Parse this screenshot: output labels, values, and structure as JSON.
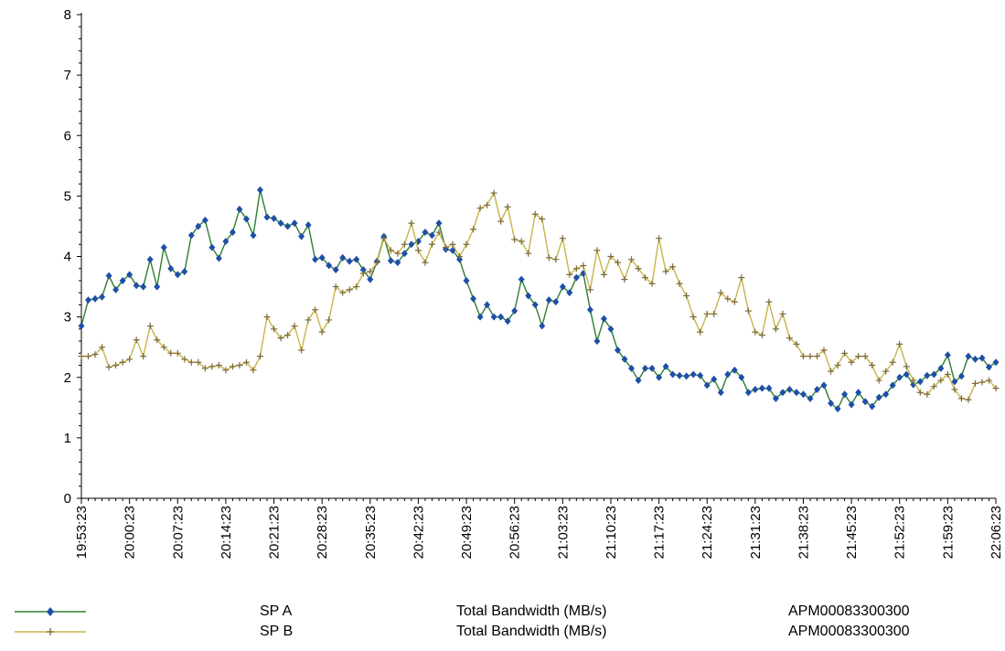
{
  "chart_data": {
    "type": "line",
    "title": "",
    "xlabel": "",
    "ylabel": "",
    "ylim": [
      0,
      8
    ],
    "yticks": [
      0,
      1,
      2,
      3,
      4,
      5,
      6,
      7,
      8
    ],
    "ytick_labels": [
      "0",
      "1",
      "2",
      "3",
      "4",
      "5",
      "6",
      "7",
      "8"
    ],
    "xlim_minutes_since_1953": [
      0,
      133
    ],
    "xtick_labels": [
      "19:53:23",
      "20:00:23",
      "20:07:23",
      "20:14:23",
      "20:21:23",
      "20:28:23",
      "20:35:23",
      "20:42:23",
      "20:49:23",
      "20:56:23",
      "21:03:23",
      "21:10:23",
      "21:17:23",
      "21:24:23",
      "21:31:23",
      "21:38:23",
      "21:45:23",
      "21:52:23",
      "21:59:23",
      "22:06:23"
    ],
    "x_interval": "1 minute, 19:53:23 to 22:06:23",
    "grid": false,
    "legend_position": "bottom",
    "series": [
      {
        "name": "SP A",
        "color": "#2e7d32",
        "marker_color": "#1e4fa8",
        "marker": "diamond",
        "values": [
          2.85,
          3.28,
          3.3,
          3.33,
          3.68,
          3.45,
          3.6,
          3.7,
          3.52,
          3.5,
          3.95,
          3.5,
          4.15,
          3.8,
          3.7,
          3.75,
          4.35,
          4.5,
          4.6,
          4.15,
          3.97,
          4.25,
          4.4,
          4.78,
          4.62,
          4.35,
          5.1,
          4.65,
          4.63,
          4.55,
          4.5,
          4.55,
          4.33,
          4.52,
          3.95,
          3.98,
          3.85,
          3.78,
          3.98,
          3.92,
          3.95,
          3.78,
          3.62,
          3.92,
          4.33,
          3.93,
          3.9,
          4.05,
          4.2,
          4.25,
          4.4,
          4.35,
          4.55,
          4.12,
          4.1,
          3.95,
          3.6,
          3.3,
          3.0,
          3.2,
          3.0,
          3.0,
          2.93,
          3.1,
          3.62,
          3.35,
          3.2,
          2.85,
          3.28,
          3.25,
          3.5,
          3.4,
          3.65,
          3.72,
          3.12,
          2.6,
          2.97,
          2.8,
          2.45,
          2.3,
          2.15,
          1.95,
          2.15,
          2.15,
          2.0,
          2.18,
          2.05,
          2.03,
          2.02,
          2.05,
          2.03,
          1.87,
          1.97,
          1.75,
          2.05,
          2.12,
          2.0,
          1.75,
          1.8,
          1.82,
          1.82,
          1.65,
          1.75,
          1.8,
          1.75,
          1.72,
          1.65,
          1.8,
          1.87,
          1.57,
          1.48,
          1.72,
          1.55,
          1.75,
          1.6,
          1.52,
          1.67,
          1.72,
          1.87,
          2.0,
          2.05,
          1.88,
          1.93,
          2.03,
          2.05,
          2.15,
          2.37,
          1.93,
          2.02,
          2.35,
          2.3,
          2.32,
          2.17,
          2.25
        ]
      },
      {
        "name": "SP B",
        "color": "#c8b44a",
        "marker_color": "#7a6a3a",
        "marker": "plus",
        "values": [
          2.35,
          2.35,
          2.38,
          2.5,
          2.17,
          2.2,
          2.25,
          2.3,
          2.62,
          2.35,
          2.85,
          2.62,
          2.5,
          2.4,
          2.4,
          2.3,
          2.25,
          2.25,
          2.15,
          2.18,
          2.2,
          2.12,
          2.18,
          2.2,
          2.25,
          2.12,
          2.35,
          3.0,
          2.8,
          2.65,
          2.7,
          2.85,
          2.45,
          2.95,
          3.12,
          2.75,
          2.95,
          3.5,
          3.4,
          3.45,
          3.5,
          3.72,
          3.75,
          3.9,
          4.3,
          4.1,
          4.05,
          4.2,
          4.55,
          4.1,
          3.9,
          4.2,
          4.4,
          4.15,
          4.2,
          4.0,
          4.2,
          4.45,
          4.8,
          4.85,
          5.05,
          4.58,
          4.82,
          4.28,
          4.25,
          4.05,
          4.7,
          4.62,
          3.98,
          3.95,
          4.3,
          3.7,
          3.8,
          3.85,
          3.45,
          4.1,
          3.7,
          4.0,
          3.9,
          3.62,
          3.95,
          3.8,
          3.65,
          3.55,
          4.3,
          3.75,
          3.83,
          3.55,
          3.35,
          3.0,
          2.75,
          3.05,
          3.05,
          3.4,
          3.3,
          3.25,
          3.65,
          3.1,
          2.75,
          2.7,
          3.25,
          2.8,
          3.05,
          2.65,
          2.55,
          2.35,
          2.35,
          2.35,
          2.45,
          2.1,
          2.2,
          2.4,
          2.25,
          2.35,
          2.35,
          2.2,
          1.95,
          2.1,
          2.25,
          2.55,
          2.18,
          1.95,
          1.75,
          1.72,
          1.85,
          1.95,
          2.05,
          1.8,
          1.65,
          1.63,
          1.9,
          1.92,
          1.95,
          1.82
        ]
      }
    ]
  },
  "legend": [
    {
      "name": "SP A",
      "metric": "Total Bandwidth (MB/s)",
      "object": "APM00083300300"
    },
    {
      "name": "SP B",
      "metric": "Total Bandwidth (MB/s)",
      "object": "APM00083300300"
    }
  ]
}
